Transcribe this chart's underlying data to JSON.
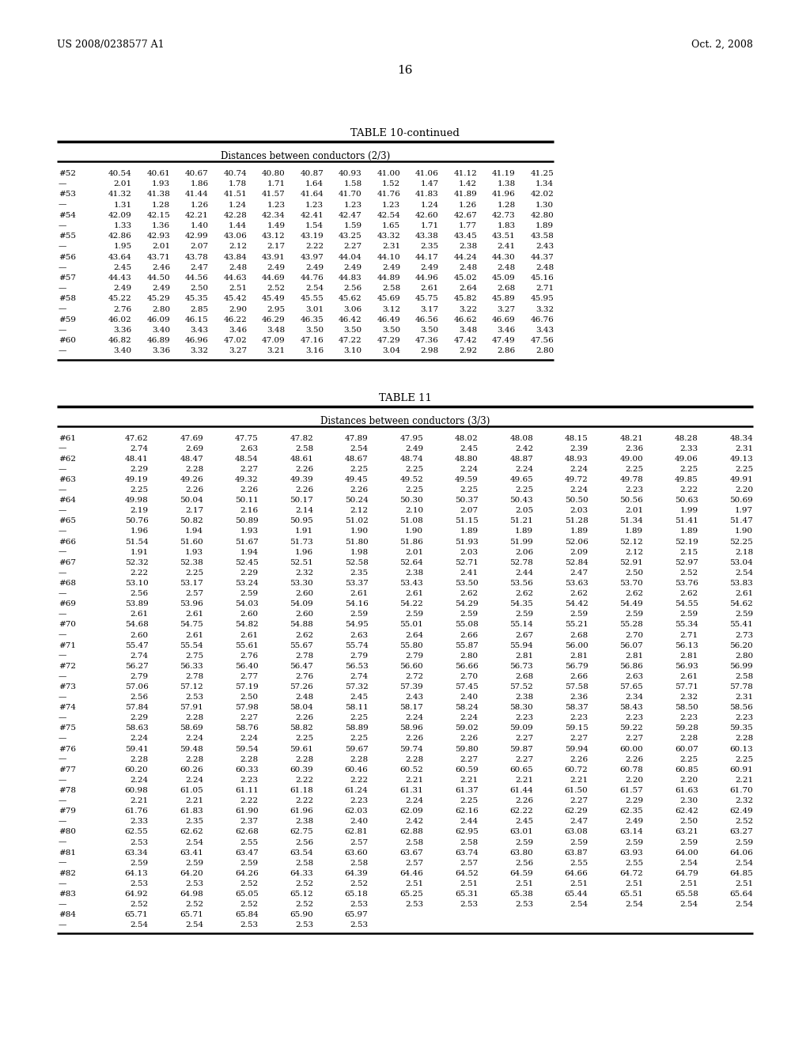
{
  "header_left": "US 2008/0238577 A1",
  "header_right": "Oct. 2, 2008",
  "page_number": "16",
  "table10_title": "TABLE 10-continued",
  "table10_subtitle": "Distances between conductors (2/3)",
  "table10_rows": [
    [
      "#52",
      "40.54",
      "40.61",
      "40.67",
      "40.74",
      "40.80",
      "40.87",
      "40.93",
      "41.00",
      "41.06",
      "41.12",
      "41.19",
      "41.25"
    ],
    [
      "—",
      "2.01",
      "1.93",
      "1.86",
      "1.78",
      "1.71",
      "1.64",
      "1.58",
      "1.52",
      "1.47",
      "1.42",
      "1.38",
      "1.34"
    ],
    [
      "#53",
      "41.32",
      "41.38",
      "41.44",
      "41.51",
      "41.57",
      "41.64",
      "41.70",
      "41.76",
      "41.83",
      "41.89",
      "41.96",
      "42.02"
    ],
    [
      "—",
      "1.31",
      "1.28",
      "1.26",
      "1.24",
      "1.23",
      "1.23",
      "1.23",
      "1.23",
      "1.24",
      "1.26",
      "1.28",
      "1.30"
    ],
    [
      "#54",
      "42.09",
      "42.15",
      "42.21",
      "42.28",
      "42.34",
      "42.41",
      "42.47",
      "42.54",
      "42.60",
      "42.67",
      "42.73",
      "42.80"
    ],
    [
      "—",
      "1.33",
      "1.36",
      "1.40",
      "1.44",
      "1.49",
      "1.54",
      "1.59",
      "1.65",
      "1.71",
      "1.77",
      "1.83",
      "1.89"
    ],
    [
      "#55",
      "42.86",
      "42.93",
      "42.99",
      "43.06",
      "43.12",
      "43.19",
      "43.25",
      "43.32",
      "43.38",
      "43.45",
      "43.51",
      "43.58"
    ],
    [
      "—",
      "1.95",
      "2.01",
      "2.07",
      "2.12",
      "2.17",
      "2.22",
      "2.27",
      "2.31",
      "2.35",
      "2.38",
      "2.41",
      "2.43"
    ],
    [
      "#56",
      "43.64",
      "43.71",
      "43.78",
      "43.84",
      "43.91",
      "43.97",
      "44.04",
      "44.10",
      "44.17",
      "44.24",
      "44.30",
      "44.37"
    ],
    [
      "—",
      "2.45",
      "2.46",
      "2.47",
      "2.48",
      "2.49",
      "2.49",
      "2.49",
      "2.49",
      "2.49",
      "2.48",
      "2.48",
      "2.48"
    ],
    [
      "#57",
      "44.43",
      "44.50",
      "44.56",
      "44.63",
      "44.69",
      "44.76",
      "44.83",
      "44.89",
      "44.96",
      "45.02",
      "45.09",
      "45.16"
    ],
    [
      "—",
      "2.49",
      "2.49",
      "2.50",
      "2.51",
      "2.52",
      "2.54",
      "2.56",
      "2.58",
      "2.61",
      "2.64",
      "2.68",
      "2.71"
    ],
    [
      "#58",
      "45.22",
      "45.29",
      "45.35",
      "45.42",
      "45.49",
      "45.55",
      "45.62",
      "45.69",
      "45.75",
      "45.82",
      "45.89",
      "45.95"
    ],
    [
      "—",
      "2.76",
      "2.80",
      "2.85",
      "2.90",
      "2.95",
      "3.01",
      "3.06",
      "3.12",
      "3.17",
      "3.22",
      "3.27",
      "3.32"
    ],
    [
      "#59",
      "46.02",
      "46.09",
      "46.15",
      "46.22",
      "46.29",
      "46.35",
      "46.42",
      "46.49",
      "46.56",
      "46.62",
      "46.69",
      "46.76"
    ],
    [
      "—",
      "3.36",
      "3.40",
      "3.43",
      "3.46",
      "3.48",
      "3.50",
      "3.50",
      "3.50",
      "3.50",
      "3.48",
      "3.46",
      "3.43"
    ],
    [
      "#60",
      "46.82",
      "46.89",
      "46.96",
      "47.02",
      "47.09",
      "47.16",
      "47.22",
      "47.29",
      "47.36",
      "47.42",
      "47.49",
      "47.56"
    ],
    [
      "—",
      "3.40",
      "3.36",
      "3.32",
      "3.27",
      "3.21",
      "3.16",
      "3.10",
      "3.04",
      "2.98",
      "2.92",
      "2.86",
      "2.80"
    ]
  ],
  "table11_title": "TABLE 11",
  "table11_subtitle": "Distances between conductors (3/3)",
  "table11_rows": [
    [
      "#61",
      "47.62",
      "47.69",
      "47.75",
      "47.82",
      "47.89",
      "47.95",
      "48.02",
      "48.08",
      "48.15",
      "48.21",
      "48.28",
      "48.34"
    ],
    [
      "—",
      "2.74",
      "2.69",
      "2.63",
      "2.58",
      "2.54",
      "2.49",
      "2.45",
      "2.42",
      "2.39",
      "2.36",
      "2.33",
      "2.31"
    ],
    [
      "#62",
      "48.41",
      "48.47",
      "48.54",
      "48.61",
      "48.67",
      "48.74",
      "48.80",
      "48.87",
      "48.93",
      "49.00",
      "49.06",
      "49.13"
    ],
    [
      "—",
      "2.29",
      "2.28",
      "2.27",
      "2.26",
      "2.25",
      "2.25",
      "2.24",
      "2.24",
      "2.24",
      "2.25",
      "2.25",
      "2.25"
    ],
    [
      "#63",
      "49.19",
      "49.26",
      "49.32",
      "49.39",
      "49.45",
      "49.52",
      "49.59",
      "49.65",
      "49.72",
      "49.78",
      "49.85",
      "49.91"
    ],
    [
      "—",
      "2.25",
      "2.26",
      "2.26",
      "2.26",
      "2.26",
      "2.25",
      "2.25",
      "2.25",
      "2.24",
      "2.23",
      "2.22",
      "2.20"
    ],
    [
      "#64",
      "49.98",
      "50.04",
      "50.11",
      "50.17",
      "50.24",
      "50.30",
      "50.37",
      "50.43",
      "50.50",
      "50.56",
      "50.63",
      "50.69"
    ],
    [
      "—",
      "2.19",
      "2.17",
      "2.16",
      "2.14",
      "2.12",
      "2.10",
      "2.07",
      "2.05",
      "2.03",
      "2.01",
      "1.99",
      "1.97"
    ],
    [
      "#65",
      "50.76",
      "50.82",
      "50.89",
      "50.95",
      "51.02",
      "51.08",
      "51.15",
      "51.21",
      "51.28",
      "51.34",
      "51.41",
      "51.47"
    ],
    [
      "—",
      "1.96",
      "1.94",
      "1.93",
      "1.91",
      "1.90",
      "1.90",
      "1.89",
      "1.89",
      "1.89",
      "1.89",
      "1.89",
      "1.90"
    ],
    [
      "#66",
      "51.54",
      "51.60",
      "51.67",
      "51.73",
      "51.80",
      "51.86",
      "51.93",
      "51.99",
      "52.06",
      "52.12",
      "52.19",
      "52.25"
    ],
    [
      "—",
      "1.91",
      "1.93",
      "1.94",
      "1.96",
      "1.98",
      "2.01",
      "2.03",
      "2.06",
      "2.09",
      "2.12",
      "2.15",
      "2.18"
    ],
    [
      "#67",
      "52.32",
      "52.38",
      "52.45",
      "52.51",
      "52.58",
      "52.64",
      "52.71",
      "52.78",
      "52.84",
      "52.91",
      "52.97",
      "53.04"
    ],
    [
      "—",
      "2.22",
      "2.25",
      "2.29",
      "2.32",
      "2.35",
      "2.38",
      "2.41",
      "2.44",
      "2.47",
      "2.50",
      "2.52",
      "2.54"
    ],
    [
      "#68",
      "53.10",
      "53.17",
      "53.24",
      "53.30",
      "53.37",
      "53.43",
      "53.50",
      "53.56",
      "53.63",
      "53.70",
      "53.76",
      "53.83"
    ],
    [
      "—",
      "2.56",
      "2.57",
      "2.59",
      "2.60",
      "2.61",
      "2.61",
      "2.62",
      "2.62",
      "2.62",
      "2.62",
      "2.62",
      "2.61"
    ],
    [
      "#69",
      "53.89",
      "53.96",
      "54.03",
      "54.09",
      "54.16",
      "54.22",
      "54.29",
      "54.35",
      "54.42",
      "54.49",
      "54.55",
      "54.62"
    ],
    [
      "—",
      "2.61",
      "2.61",
      "2.60",
      "2.60",
      "2.59",
      "2.59",
      "2.59",
      "2.59",
      "2.59",
      "2.59",
      "2.59",
      "2.59"
    ],
    [
      "#70",
      "54.68",
      "54.75",
      "54.82",
      "54.88",
      "54.95",
      "55.01",
      "55.08",
      "55.14",
      "55.21",
      "55.28",
      "55.34",
      "55.41"
    ],
    [
      "—",
      "2.60",
      "2.61",
      "2.61",
      "2.62",
      "2.63",
      "2.64",
      "2.66",
      "2.67",
      "2.68",
      "2.70",
      "2.71",
      "2.73"
    ],
    [
      "#71",
      "55.47",
      "55.54",
      "55.61",
      "55.67",
      "55.74",
      "55.80",
      "55.87",
      "55.94",
      "56.00",
      "56.07",
      "56.13",
      "56.20"
    ],
    [
      "—",
      "2.74",
      "2.75",
      "2.76",
      "2.78",
      "2.79",
      "2.79",
      "2.80",
      "2.81",
      "2.81",
      "2.81",
      "2.81",
      "2.80"
    ],
    [
      "#72",
      "56.27",
      "56.33",
      "56.40",
      "56.47",
      "56.53",
      "56.60",
      "56.66",
      "56.73",
      "56.79",
      "56.86",
      "56.93",
      "56.99"
    ],
    [
      "—",
      "2.79",
      "2.78",
      "2.77",
      "2.76",
      "2.74",
      "2.72",
      "2.70",
      "2.68",
      "2.66",
      "2.63",
      "2.61",
      "2.58"
    ],
    [
      "#73",
      "57.06",
      "57.12",
      "57.19",
      "57.26",
      "57.32",
      "57.39",
      "57.45",
      "57.52",
      "57.58",
      "57.65",
      "57.71",
      "57.78"
    ],
    [
      "—",
      "2.56",
      "2.53",
      "2.50",
      "2.48",
      "2.45",
      "2.43",
      "2.40",
      "2.38",
      "2.36",
      "2.34",
      "2.32",
      "2.31"
    ],
    [
      "#74",
      "57.84",
      "57.91",
      "57.98",
      "58.04",
      "58.11",
      "58.17",
      "58.24",
      "58.30",
      "58.37",
      "58.43",
      "58.50",
      "58.56"
    ],
    [
      "—",
      "2.29",
      "2.28",
      "2.27",
      "2.26",
      "2.25",
      "2.24",
      "2.24",
      "2.23",
      "2.23",
      "2.23",
      "2.23",
      "2.23"
    ],
    [
      "#75",
      "58.63",
      "58.69",
      "58.76",
      "58.82",
      "58.89",
      "58.96",
      "59.02",
      "59.09",
      "59.15",
      "59.22",
      "59.28",
      "59.35"
    ],
    [
      "—",
      "2.24",
      "2.24",
      "2.24",
      "2.25",
      "2.25",
      "2.26",
      "2.26",
      "2.27",
      "2.27",
      "2.27",
      "2.28",
      "2.28"
    ],
    [
      "#76",
      "59.41",
      "59.48",
      "59.54",
      "59.61",
      "59.67",
      "59.74",
      "59.80",
      "59.87",
      "59.94",
      "60.00",
      "60.07",
      "60.13"
    ],
    [
      "—",
      "2.28",
      "2.28",
      "2.28",
      "2.28",
      "2.28",
      "2.28",
      "2.27",
      "2.27",
      "2.26",
      "2.26",
      "2.25",
      "2.25"
    ],
    [
      "#77",
      "60.20",
      "60.26",
      "60.33",
      "60.39",
      "60.46",
      "60.52",
      "60.59",
      "60.65",
      "60.72",
      "60.78",
      "60.85",
      "60.91"
    ],
    [
      "—",
      "2.24",
      "2.24",
      "2.23",
      "2.22",
      "2.22",
      "2.21",
      "2.21",
      "2.21",
      "2.21",
      "2.20",
      "2.20",
      "2.21"
    ],
    [
      "#78",
      "60.98",
      "61.05",
      "61.11",
      "61.18",
      "61.24",
      "61.31",
      "61.37",
      "61.44",
      "61.50",
      "61.57",
      "61.63",
      "61.70"
    ],
    [
      "—",
      "2.21",
      "2.21",
      "2.22",
      "2.22",
      "2.23",
      "2.24",
      "2.25",
      "2.26",
      "2.27",
      "2.29",
      "2.30",
      "2.32"
    ],
    [
      "#79",
      "61.76",
      "61.83",
      "61.90",
      "61.96",
      "62.03",
      "62.09",
      "62.16",
      "62.22",
      "62.29",
      "62.35",
      "62.42",
      "62.49"
    ],
    [
      "—",
      "2.33",
      "2.35",
      "2.37",
      "2.38",
      "2.40",
      "2.42",
      "2.44",
      "2.45",
      "2.47",
      "2.49",
      "2.50",
      "2.52"
    ],
    [
      "#80",
      "62.55",
      "62.62",
      "62.68",
      "62.75",
      "62.81",
      "62.88",
      "62.95",
      "63.01",
      "63.08",
      "63.14",
      "63.21",
      "63.27"
    ],
    [
      "—",
      "2.53",
      "2.54",
      "2.55",
      "2.56",
      "2.57",
      "2.58",
      "2.58",
      "2.59",
      "2.59",
      "2.59",
      "2.59",
      "2.59"
    ],
    [
      "#81",
      "63.34",
      "63.41",
      "63.47",
      "63.54",
      "63.60",
      "63.67",
      "63.74",
      "63.80",
      "63.87",
      "63.93",
      "64.00",
      "64.06"
    ],
    [
      "—",
      "2.59",
      "2.59",
      "2.59",
      "2.58",
      "2.58",
      "2.57",
      "2.57",
      "2.56",
      "2.55",
      "2.55",
      "2.54",
      "2.54"
    ],
    [
      "#82",
      "64.13",
      "64.20",
      "64.26",
      "64.33",
      "64.39",
      "64.46",
      "64.52",
      "64.59",
      "64.66",
      "64.72",
      "64.79",
      "64.85"
    ],
    [
      "—",
      "2.53",
      "2.53",
      "2.52",
      "2.52",
      "2.52",
      "2.51",
      "2.51",
      "2.51",
      "2.51",
      "2.51",
      "2.51",
      "2.51"
    ],
    [
      "#83",
      "64.92",
      "64.98",
      "65.05",
      "65.12",
      "65.18",
      "65.25",
      "65.31",
      "65.38",
      "65.44",
      "65.51",
      "65.58",
      "65.64"
    ],
    [
      "—",
      "2.52",
      "2.52",
      "2.52",
      "2.52",
      "2.53",
      "2.53",
      "2.53",
      "2.53",
      "2.54",
      "2.54",
      "2.54",
      "2.54"
    ],
    [
      "#84",
      "65.71",
      "65.71",
      "65.84",
      "65.90",
      "65.97",
      "",
      "",
      "",
      "",
      "",
      "",
      ""
    ],
    [
      "—",
      "2.54",
      "2.54",
      "2.53",
      "2.53",
      "2.53",
      "",
      "",
      "",
      "",
      "",
      "",
      ""
    ]
  ],
  "bg_color": "#ffffff",
  "text_color": "#000000"
}
